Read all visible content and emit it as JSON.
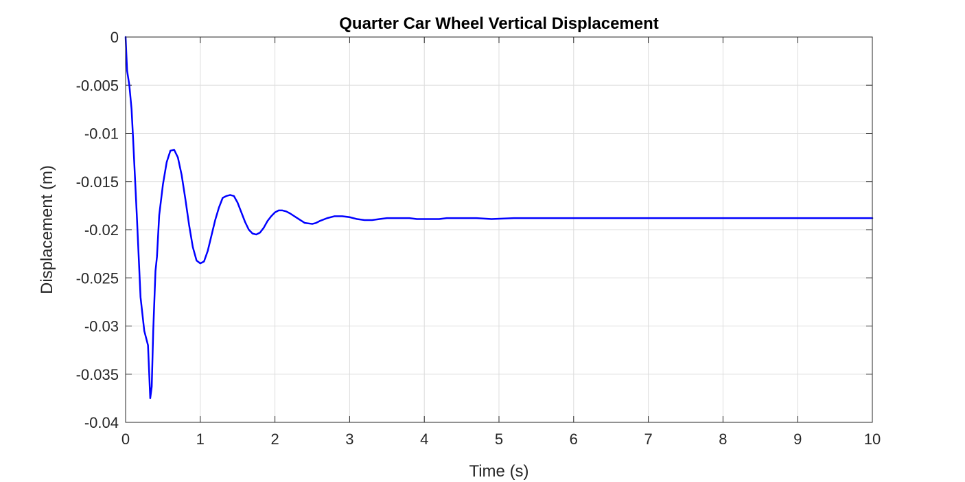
{
  "chart_data": {
    "type": "line",
    "title": "Quarter Car Wheel Vertical Displacement",
    "xlabel": "Time (s)",
    "ylabel": "Displacement (m)",
    "xlim": [
      0,
      10
    ],
    "ylim": [
      -0.04,
      0
    ],
    "xticks": [
      0,
      1,
      2,
      3,
      4,
      5,
      6,
      7,
      8,
      9,
      10
    ],
    "xtick_labels": [
      "0",
      "1",
      "2",
      "3",
      "4",
      "5",
      "6",
      "7",
      "8",
      "9",
      "10"
    ],
    "yticks": [
      0,
      -0.005,
      -0.01,
      -0.015,
      -0.02,
      -0.025,
      -0.03,
      -0.035,
      -0.04
    ],
    "ytick_labels": [
      "0",
      "-0.005",
      "-0.01",
      "-0.015",
      "-0.02",
      "-0.025",
      "-0.03",
      "-0.035",
      "-0.04"
    ],
    "grid": true,
    "series": [
      {
        "color": "#0000ff",
        "x": [
          0,
          0.02,
          0.05,
          0.08,
          0.1,
          0.15,
          0.2,
          0.25,
          0.3,
          0.33,
          0.35,
          0.37,
          0.4,
          0.42,
          0.45,
          0.5,
          0.55,
          0.6,
          0.65,
          0.7,
          0.75,
          0.8,
          0.85,
          0.9,
          0.95,
          1.0,
          1.05,
          1.1,
          1.15,
          1.2,
          1.25,
          1.3,
          1.35,
          1.4,
          1.45,
          1.5,
          1.55,
          1.6,
          1.65,
          1.7,
          1.75,
          1.8,
          1.85,
          1.9,
          1.95,
          2.0,
          2.05,
          2.1,
          2.15,
          2.2,
          2.3,
          2.4,
          2.5,
          2.55,
          2.6,
          2.7,
          2.8,
          2.9,
          3.0,
          3.1,
          3.2,
          3.3,
          3.4,
          3.5,
          3.6,
          3.7,
          3.8,
          3.9,
          4.0,
          4.1,
          4.2,
          4.3,
          4.4,
          4.5,
          4.7,
          4.9,
          5.2,
          5.5,
          6.0,
          7.0,
          8.0,
          9.0,
          10.0
        ],
        "y": [
          0,
          -0.0035,
          -0.005,
          -0.0075,
          -0.0105,
          -0.0185,
          -0.027,
          -0.0305,
          -0.032,
          -0.0375,
          -0.0363,
          -0.0305,
          -0.0243,
          -0.0228,
          -0.0185,
          -0.0153,
          -0.013,
          -0.0118,
          -0.0117,
          -0.0125,
          -0.0143,
          -0.0168,
          -0.0195,
          -0.0218,
          -0.0232,
          -0.0235,
          -0.0233,
          -0.0222,
          -0.0206,
          -0.019,
          -0.0177,
          -0.0167,
          -0.0165,
          -0.0164,
          -0.0165,
          -0.0172,
          -0.0182,
          -0.0192,
          -0.02,
          -0.0204,
          -0.0205,
          -0.0203,
          -0.0198,
          -0.0191,
          -0.0186,
          -0.0182,
          -0.018,
          -0.018,
          -0.0181,
          -0.0183,
          -0.0188,
          -0.0193,
          -0.0194,
          -0.0193,
          -0.0191,
          -0.0188,
          -0.0186,
          -0.0186,
          -0.0187,
          -0.0189,
          -0.019,
          -0.019,
          -0.0189,
          -0.0188,
          -0.0188,
          -0.0188,
          -0.0188,
          -0.0189,
          -0.0189,
          -0.0189,
          -0.0189,
          -0.0188,
          -0.0188,
          -0.0188,
          -0.0188,
          -0.0189,
          -0.0188,
          -0.0188,
          -0.0188,
          -0.0188,
          -0.0188,
          -0.0188,
          -0.0188
        ]
      }
    ]
  }
}
